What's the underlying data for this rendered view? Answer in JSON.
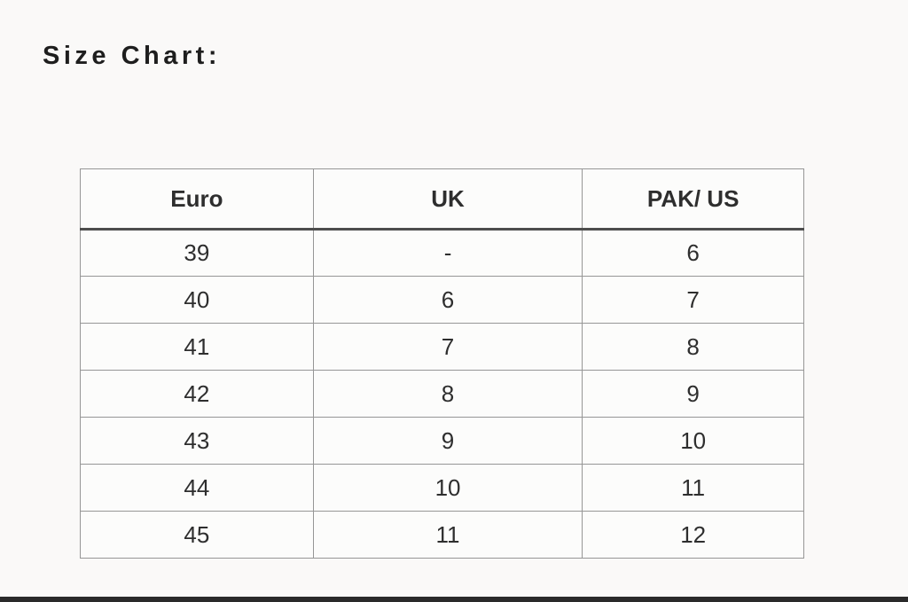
{
  "page": {
    "title": "Size Chart:"
  },
  "colors": {
    "background": "#faf9f8",
    "text": "#2e2e2e",
    "table_border": "#969696",
    "header_separator": "#4d4d4d",
    "bottom_bar": "#2a2a2a"
  },
  "chart_data": {
    "type": "table",
    "title": "Size Chart:",
    "columns": [
      "Euro",
      "UK",
      "PAK/ US"
    ],
    "rows": [
      [
        "39",
        "-",
        "6"
      ],
      [
        "40",
        "6",
        "7"
      ],
      [
        "41",
        "7",
        "8"
      ],
      [
        "42",
        "8",
        "9"
      ],
      [
        "43",
        "9",
        "10"
      ],
      [
        "44",
        "10",
        "11"
      ],
      [
        "45",
        "11",
        "12"
      ]
    ]
  }
}
